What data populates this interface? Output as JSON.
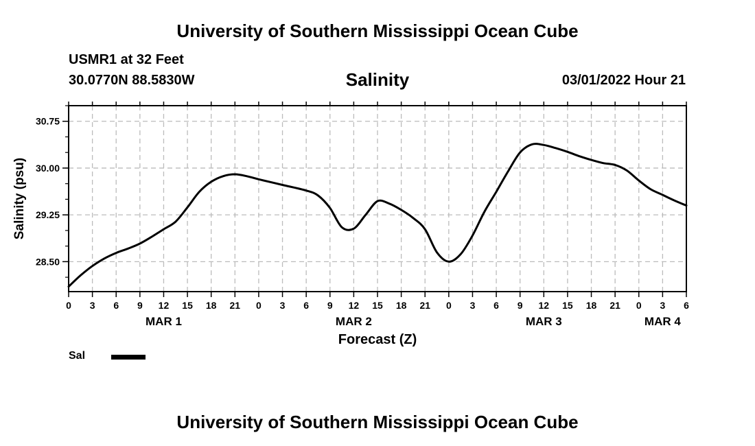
{
  "header": {
    "title": "University of Southern Mississippi Ocean Cube",
    "station": "USMR1 at 32 Feet",
    "coords": "30.0770N  88.5830W",
    "variable": "Salinity",
    "datetime": "03/01/2022 Hour 21"
  },
  "footer": {
    "title": "University of Southern Mississippi Ocean Cube"
  },
  "legend": {
    "label": "Sal"
  },
  "colors": {
    "line": "#000000",
    "grid": "#bbbbbb",
    "background": "#ffffff"
  },
  "chart_data": {
    "type": "line",
    "title": "Salinity",
    "xlabel": "Forecast (Z)",
    "ylabel": "Salinity (psu)",
    "x_unit": "hours since MAR 1 00Z",
    "xlim": [
      0,
      78
    ],
    "ylim": [
      28.02,
      31.0
    ],
    "grid": true,
    "y_ticks": [
      28.5,
      29.25,
      30.0,
      30.75
    ],
    "y_tick_labels": [
      "28.50",
      "29.25",
      "30.00",
      "30.75"
    ],
    "y_minor_step": 0.25,
    "x_ticks": [
      0,
      3,
      6,
      9,
      12,
      15,
      18,
      21,
      24,
      27,
      30,
      33,
      36,
      39,
      42,
      45,
      48,
      51,
      54,
      57,
      60,
      63,
      66,
      69,
      72,
      75,
      78
    ],
    "x_tick_labels": [
      "0",
      "3",
      "6",
      "9",
      "12",
      "15",
      "18",
      "21",
      "0",
      "3",
      "6",
      "9",
      "12",
      "15",
      "18",
      "21",
      "0",
      "3",
      "6",
      "9",
      "12",
      "15",
      "18",
      "21",
      "0",
      "3",
      "6"
    ],
    "day_labels": [
      {
        "label": "MAR 1",
        "x": 12
      },
      {
        "label": "MAR 2",
        "x": 36
      },
      {
        "label": "MAR 3",
        "x": 60
      },
      {
        "label": "MAR 4",
        "x": 75
      }
    ],
    "series": [
      {
        "name": "Sal",
        "x": [
          0,
          1.5,
          3,
          4.5,
          6,
          7.5,
          9,
          10.5,
          12,
          13.5,
          15,
          16.5,
          18,
          19.5,
          21,
          22.5,
          24,
          27,
          30,
          31.5,
          33,
          34.5,
          36,
          37.5,
          39,
          40.5,
          42,
          43.5,
          45,
          46.5,
          48,
          49.5,
          51,
          52.5,
          54,
          55.5,
          57,
          58.5,
          60,
          61.5,
          63,
          64.5,
          66,
          67.5,
          69,
          70.5,
          72,
          73.5,
          75,
          76.5,
          78
        ],
        "y": [
          28.1,
          28.28,
          28.43,
          28.55,
          28.64,
          28.71,
          28.79,
          28.9,
          29.02,
          29.14,
          29.37,
          29.62,
          29.78,
          29.87,
          29.9,
          29.87,
          29.82,
          29.73,
          29.64,
          29.56,
          29.36,
          29.05,
          29.03,
          29.25,
          29.47,
          29.43,
          29.33,
          29.2,
          29.02,
          28.65,
          28.5,
          28.62,
          28.92,
          29.3,
          29.62,
          29.95,
          30.25,
          30.38,
          30.37,
          30.32,
          30.26,
          30.19,
          30.13,
          30.08,
          30.05,
          29.96,
          29.8,
          29.66,
          29.57,
          29.48,
          29.4
        ]
      }
    ]
  }
}
